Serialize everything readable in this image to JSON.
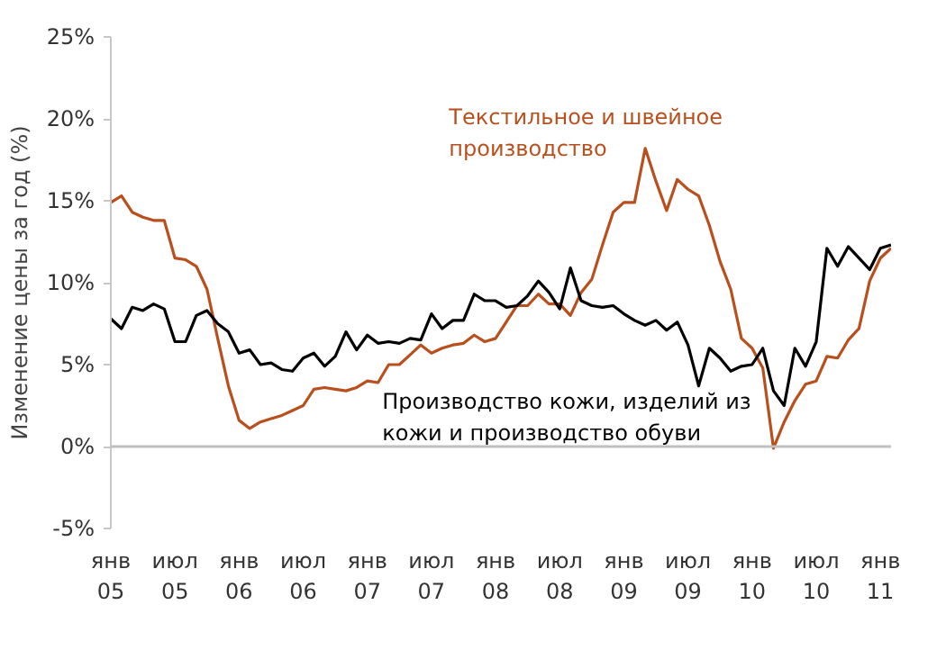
{
  "chart_data": {
    "type": "line",
    "ylabel": "Изменение цены за год (%)",
    "x": [
      "2005-01",
      "2005-02",
      "2005-03",
      "2005-04",
      "2005-05",
      "2005-06",
      "2005-07",
      "2005-08",
      "2005-09",
      "2005-10",
      "2005-11",
      "2005-12",
      "2006-01",
      "2006-02",
      "2006-03",
      "2006-04",
      "2006-05",
      "2006-06",
      "2006-07",
      "2006-08",
      "2006-09",
      "2006-10",
      "2006-11",
      "2006-12",
      "2007-01",
      "2007-02",
      "2007-03",
      "2007-04",
      "2007-05",
      "2007-06",
      "2007-07",
      "2007-08",
      "2007-09",
      "2007-10",
      "2007-11",
      "2007-12",
      "2008-01",
      "2008-02",
      "2008-03",
      "2008-04",
      "2008-05",
      "2008-06",
      "2008-07",
      "2008-08",
      "2008-09",
      "2008-10",
      "2008-11",
      "2008-12",
      "2009-01",
      "2009-02",
      "2009-03",
      "2009-04",
      "2009-05",
      "2009-06",
      "2009-07",
      "2009-08",
      "2009-09",
      "2009-10",
      "2009-11",
      "2009-12",
      "2010-01",
      "2010-02",
      "2010-03",
      "2010-04",
      "2010-05",
      "2010-06",
      "2010-07",
      "2010-08",
      "2010-09",
      "2010-10",
      "2010-11",
      "2010-12",
      "2011-01",
      "2011-02"
    ],
    "series": [
      {
        "name": "Текстильное и швейное\nпроизводство",
        "color": "#b94f1d",
        "values": [
          14.9,
          15.3,
          14.3,
          14.0,
          13.8,
          13.8,
          11.5,
          11.4,
          11.0,
          9.6,
          6.6,
          3.7,
          1.6,
          1.1,
          1.5,
          1.7,
          1.9,
          2.2,
          2.5,
          3.5,
          3.6,
          3.5,
          3.4,
          3.6,
          4.0,
          3.9,
          5.0,
          5.0,
          5.6,
          6.2,
          5.7,
          6.0,
          6.2,
          6.3,
          6.8,
          6.4,
          6.6,
          7.6,
          8.6,
          8.6,
          9.3,
          8.7,
          8.7,
          8.0,
          9.4,
          10.2,
          12.3,
          14.3,
          14.9,
          14.9,
          18.2,
          16.2,
          14.4,
          16.3,
          15.7,
          15.3,
          13.5,
          11.3,
          9.6,
          6.6,
          6.0,
          4.8,
          -0.1,
          1.5,
          2.8,
          3.8,
          4.0,
          5.5,
          5.4,
          6.5,
          7.2,
          10.1,
          11.5,
          12.1
        ]
      },
      {
        "name": "Производство кожи, изделий из\nкожи и производство обуви",
        "color": "#000000",
        "values": [
          7.8,
          7.2,
          8.5,
          8.3,
          8.7,
          8.4,
          6.4,
          6.4,
          8.0,
          8.3,
          7.5,
          7.0,
          5.7,
          5.9,
          5.0,
          5.1,
          4.7,
          4.6,
          5.4,
          5.7,
          4.9,
          5.5,
          7.0,
          5.9,
          6.8,
          6.3,
          6.4,
          6.3,
          6.6,
          6.5,
          8.1,
          7.2,
          7.7,
          7.7,
          9.3,
          8.9,
          8.9,
          8.5,
          8.6,
          9.2,
          10.1,
          9.4,
          8.4,
          10.9,
          8.9,
          8.6,
          8.5,
          8.6,
          8.1,
          7.7,
          7.4,
          7.7,
          7.1,
          7.6,
          6.2,
          3.7,
          6.0,
          5.4,
          4.6,
          4.9,
          5.0,
          6.0,
          3.4,
          2.5,
          6.0,
          4.9,
          6.4,
          12.1,
          11.0,
          12.2,
          11.5,
          10.8,
          12.1,
          12.3
        ]
      }
    ],
    "xlim": [
      "2005-01",
      "2011-02"
    ],
    "xticks": [
      {
        "value": "2005-01",
        "label": "янв\n05"
      },
      {
        "value": "2005-07",
        "label": "июл\n05"
      },
      {
        "value": "2006-01",
        "label": "янв\n06"
      },
      {
        "value": "2006-07",
        "label": "июл\n06"
      },
      {
        "value": "2007-01",
        "label": "янв\n07"
      },
      {
        "value": "2007-07",
        "label": "июл\n07"
      },
      {
        "value": "2008-01",
        "label": "янв\n08"
      },
      {
        "value": "2008-07",
        "label": "июл\n08"
      },
      {
        "value": "2009-01",
        "label": "янв\n09"
      },
      {
        "value": "2009-07",
        "label": "июл\n09"
      },
      {
        "value": "2010-01",
        "label": "янв\n10"
      },
      {
        "value": "2010-07",
        "label": "июл\n10"
      },
      {
        "value": "2011-01",
        "label": "янв\n11"
      }
    ],
    "ylim": [
      -5,
      25
    ],
    "yticks": [
      {
        "value": -5,
        "label": "-5%"
      },
      {
        "value": 0,
        "label": "0%"
      },
      {
        "value": 5,
        "label": "5%"
      },
      {
        "value": 10,
        "label": "10%"
      },
      {
        "value": 15,
        "label": "15%"
      },
      {
        "value": 20,
        "label": "20%"
      },
      {
        "value": 25,
        "label": "25%"
      }
    ],
    "ref_lines": [
      {
        "axis": "y",
        "value": 0,
        "color": "#c0c0c0"
      }
    ],
    "grid": false,
    "legend": false,
    "marker": "none",
    "line_style": "solid"
  }
}
